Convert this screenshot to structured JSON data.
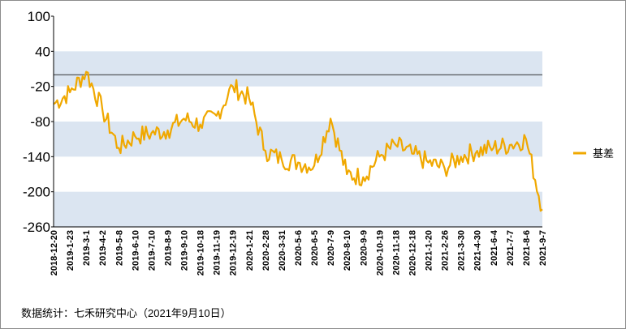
{
  "chart_data": {
    "type": "line",
    "series": [
      {
        "name": "基差",
        "color": "#f0a800",
        "x": [
          "2018-12-20",
          "2019-1-23",
          "2019-3-1",
          "2019-4-2",
          "2019-5-8",
          "2019-6-10",
          "2019-7-10",
          "2019-8-9",
          "2019-9-10",
          "2019-10-18",
          "2019-11-19",
          "2019-12-19",
          "2020-1-21",
          "2020-2-28",
          "2020-3-31",
          "2020-5-6",
          "2020-6-5",
          "2020-7-9",
          "2020-8-10",
          "2020-9-9",
          "2020-10-19",
          "2020-11-18",
          "2020-12-18",
          "2021-1-20",
          "2021-2-26",
          "2021-3-30",
          "2021-4-30",
          "2021-6-4",
          "2021-7-7",
          "2021-8-6",
          "2021-9-7"
        ],
        "values": [
          -50,
          -30,
          5,
          -60,
          -125,
          -105,
          -100,
          -95,
          -75,
          -85,
          -70,
          -20,
          -40,
          -130,
          -145,
          -150,
          -155,
          -75,
          -170,
          -175,
          -140,
          -120,
          -135,
          -150,
          -160,
          -140,
          -130,
          -125,
          -120,
          -110,
          -230
        ]
      }
    ],
    "y_ticks": [
      "100",
      "40",
      "-20",
      "-80",
      "-140",
      "-200",
      "-260"
    ],
    "x_ticks": [
      "2018-12-20",
      "2019-1-23",
      "2019-3-1",
      "2019-4-2",
      "2019-5-8",
      "2019-6-10",
      "2019-7-10",
      "2019-8-9",
      "2019-9-10",
      "2019-10-18",
      "2019-11-19",
      "2019-12-19",
      "2020-1-21",
      "2020-2-28",
      "2020-3-31",
      "2020-5-6",
      "2020-6-5",
      "2020-7-9",
      "2020-8-10",
      "2020-9-9",
      "2020-10-19",
      "2020-11-18",
      "2020-12-18",
      "2021-1-20",
      "2021-2-26",
      "2021-3-30",
      "2021-4-30",
      "2021-6-4",
      "2021-7-7",
      "2021-8-6",
      "2021-9-7"
    ],
    "ylim": [
      -260,
      100
    ],
    "reference_line": 0,
    "bands": [
      [
        -20,
        40
      ],
      [
        -140,
        -80
      ],
      [
        -260,
        -200
      ]
    ],
    "band_color": "#dbe5f1",
    "legend": {
      "label": "基差",
      "position": "right"
    },
    "grid": false
  },
  "footer": {
    "source": "数据统计：七禾研究中心（2021年9月10日）"
  }
}
